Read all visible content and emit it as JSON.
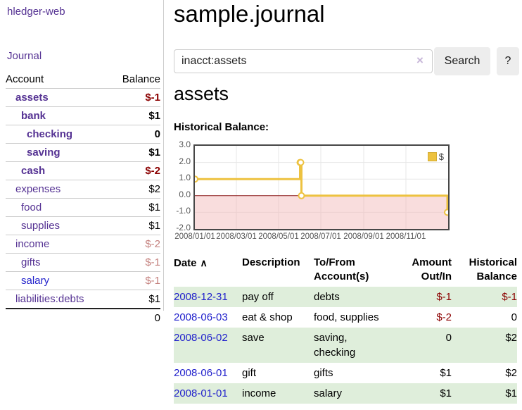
{
  "colors": {
    "link_purple": "#553293",
    "link_blue": "#2222cc",
    "negative_strong": "#8b0000",
    "negative_soft": "#c4807d",
    "row_green": "#dfeedb",
    "chart_line": "#edc240",
    "chart_zero": "#8b1a1a",
    "button_bg": "#ededed",
    "border_gray": "#cccccc"
  },
  "sidebar": {
    "app_title": "hledger-web",
    "journal_link": "Journal",
    "accounts_table": {
      "account_header": "Account",
      "balance_header": "Balance",
      "rows": [
        {
          "name": "assets",
          "indent": 1,
          "bold": true,
          "balance": "$-1",
          "balance_color": "negative-strong"
        },
        {
          "name": "bank",
          "indent": 2,
          "bold": true,
          "balance": "$1",
          "balance_color": "normal"
        },
        {
          "name": "checking",
          "indent": 3,
          "bold": true,
          "balance": "0",
          "balance_color": "normal"
        },
        {
          "name": "saving",
          "indent": 3,
          "bold": true,
          "balance": "$1",
          "balance_color": "normal"
        },
        {
          "name": "cash",
          "indent": 2,
          "bold": true,
          "balance": "$-2",
          "balance_color": "negative-strong"
        },
        {
          "name": "expenses",
          "indent": 1,
          "bold": false,
          "balance": "$2",
          "balance_color": "normal"
        },
        {
          "name": "food",
          "indent": 2,
          "bold": false,
          "balance": "$1",
          "balance_color": "normal"
        },
        {
          "name": "supplies",
          "indent": 2,
          "bold": false,
          "balance": "$1",
          "balance_color": "normal"
        },
        {
          "name": "income",
          "indent": 1,
          "bold": false,
          "balance": "$-2",
          "balance_color": "negative-soft"
        },
        {
          "name": "gifts",
          "indent": 2,
          "bold": false,
          "balance": "$-1",
          "balance_color": "negative-soft"
        },
        {
          "name": "salary",
          "indent": 2,
          "bold": false,
          "balance": "$-1",
          "balance_color": "negative-soft",
          "link_color": "blue"
        },
        {
          "name": "liabilities:debts",
          "indent": 1,
          "bold": false,
          "balance": "$1",
          "balance_color": "normal"
        }
      ],
      "total": "0"
    }
  },
  "header": {
    "title": "sample.journal"
  },
  "search": {
    "value": "inacct:assets",
    "clear_icon": "×",
    "search_label": "Search",
    "help_label": "?"
  },
  "account_page": {
    "heading": "assets",
    "section_label": "Historical Balance:"
  },
  "chart_data": {
    "type": "line",
    "step": true,
    "title": "Historical Balance:",
    "x_range": [
      "2008-01-01",
      "2009-01-01"
    ],
    "ylim": [
      -2,
      3
    ],
    "grid": true,
    "legend_position": "top-right",
    "yticks": [
      {
        "v": 3,
        "label": "3.0"
      },
      {
        "v": 2,
        "label": "2.0"
      },
      {
        "v": 1,
        "label": "1.0"
      },
      {
        "v": 0,
        "label": "0.0"
      },
      {
        "v": -1,
        "label": "-1.0"
      },
      {
        "v": -2,
        "label": "-2.0"
      }
    ],
    "xticks": [
      {
        "date": "2008-01-01",
        "label": "2008/01/01"
      },
      {
        "date": "2008-03-01",
        "label": "2008/03/01"
      },
      {
        "date": "2008-05-01",
        "label": "2008/05/01"
      },
      {
        "date": "2008-07-01",
        "label": "2008/07/01"
      },
      {
        "date": "2008-09-01",
        "label": "2008/09/01"
      },
      {
        "date": "2008-11-01",
        "label": "2008/11/01"
      }
    ],
    "series": [
      {
        "name": "$",
        "color": "#edc240",
        "points": [
          [
            "2008-01-01",
            1
          ],
          [
            "2008-06-01",
            2
          ],
          [
            "2008-06-02",
            2
          ],
          [
            "2008-06-03",
            0
          ],
          [
            "2008-12-31",
            -1
          ]
        ]
      }
    ],
    "negative_region": {
      "from": 0,
      "to": -2
    }
  },
  "transactions": {
    "headers": {
      "date": "Date",
      "sort_icon": "∧",
      "description": "Description",
      "accounts": "To/From Account(s)",
      "amount": "Amount Out/In",
      "balance": "Historical Balance"
    },
    "rows": [
      {
        "date": "2008-12-31",
        "description": "pay off",
        "accounts": "debts",
        "amount": "$-1",
        "amount_neg": true,
        "balance": "$-1",
        "balance_neg": true,
        "shaded": true
      },
      {
        "date": "2008-06-03",
        "description": "eat & shop",
        "accounts": "food, supplies",
        "amount": "$-2",
        "amount_neg": true,
        "balance": "0",
        "balance_neg": false,
        "shaded": false
      },
      {
        "date": "2008-06-02",
        "description": "save",
        "accounts": "saving, checking",
        "amount": "0",
        "amount_neg": false,
        "balance": "$2",
        "balance_neg": false,
        "shaded": true
      },
      {
        "date": "2008-06-01",
        "description": "gift",
        "accounts": "gifts",
        "amount": "$1",
        "amount_neg": false,
        "balance": "$2",
        "balance_neg": false,
        "shaded": false
      },
      {
        "date": "2008-01-01",
        "description": "income",
        "accounts": "salary",
        "amount": "$1",
        "amount_neg": false,
        "balance": "$1",
        "balance_neg": false,
        "shaded": true
      }
    ]
  }
}
